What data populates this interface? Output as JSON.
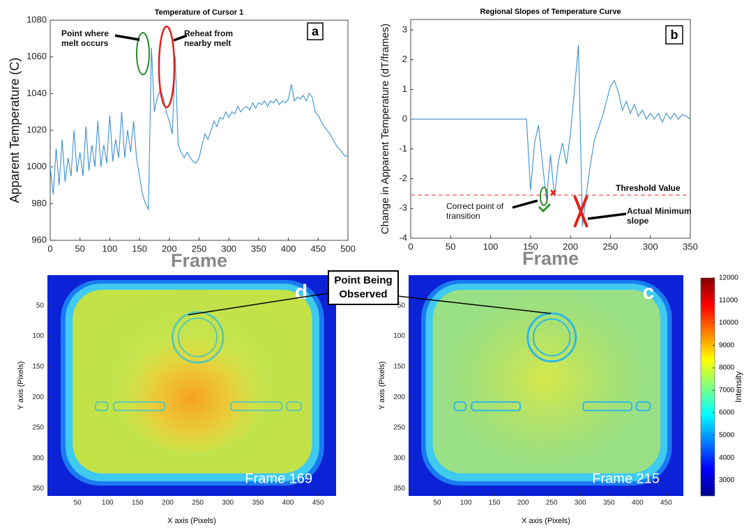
{
  "chart_data": [
    {
      "type": "line",
      "title": "Temperature of Cursor 1",
      "xlabel": "Frame",
      "ylabel": "Apparent  Temperature  (C)",
      "panel_label": "a",
      "annotations": [
        "Point where melt occurs",
        "Reheat from nearby melt"
      ],
      "xlim": [
        0,
        500
      ],
      "ylim": [
        960,
        1080
      ],
      "xticks": [
        0,
        50,
        100,
        150,
        200,
        250,
        300,
        350,
        400,
        450,
        500
      ],
      "yticks": [
        960,
        980,
        1000,
        1020,
        1040,
        1060,
        1080
      ],
      "grid": false,
      "x": [
        0,
        5,
        10,
        15,
        20,
        25,
        30,
        35,
        40,
        45,
        50,
        55,
        60,
        65,
        70,
        75,
        80,
        85,
        90,
        95,
        100,
        105,
        110,
        115,
        120,
        125,
        130,
        135,
        140,
        145,
        150,
        155,
        160,
        165,
        170,
        175,
        180,
        185,
        190,
        195,
        200,
        205,
        210,
        215,
        220,
        225,
        230,
        235,
        240,
        245,
        250,
        255,
        260,
        265,
        270,
        275,
        280,
        285,
        290,
        295,
        300,
        305,
        310,
        315,
        320,
        325,
        330,
        335,
        340,
        345,
        350,
        355,
        360,
        365,
        370,
        375,
        380,
        385,
        390,
        395,
        400,
        405,
        410,
        415,
        420,
        425,
        430,
        435,
        440,
        445,
        450,
        455,
        460,
        465,
        470,
        475,
        480,
        485,
        490,
        495,
        500
      ],
      "series": [
        {
          "color": "#3a8fd0",
          "values": [
            1000,
            985,
            1010,
            990,
            1015,
            992,
            1005,
            995,
            1020,
            997,
            1008,
            995,
            1022,
            998,
            1012,
            1000,
            1025,
            1000,
            1012,
            1002,
            1028,
            1003,
            1015,
            1005,
            1030,
            1005,
            1020,
            1008,
            1025,
            1005,
            995,
            985,
            980,
            977,
            1065,
            1030,
            1038,
            1042,
            1038,
            1030,
            1025,
            1018,
            1060,
            1012,
            1008,
            1005,
            1008,
            1005,
            1003,
            1002,
            1005,
            1012,
            1018,
            1015,
            1020,
            1025,
            1022,
            1027,
            1026,
            1030,
            1027,
            1030,
            1029,
            1033,
            1030,
            1032,
            1033,
            1031,
            1035,
            1032,
            1035,
            1034,
            1036,
            1033,
            1036,
            1035,
            1037,
            1034,
            1036,
            1035,
            1037,
            1045,
            1036,
            1038,
            1037,
            1039,
            1036,
            1040,
            1038,
            1030,
            1028,
            1025,
            1022,
            1020,
            1018,
            1015,
            1012,
            1010,
            1008,
            1006,
            1006
          ]
        }
      ]
    },
    {
      "type": "line",
      "title": "Regional Slopes of Temperature Curve",
      "xlabel": "Frame",
      "ylabel": "Change in Apparent Temperature (dT/frames)",
      "panel_label": "b",
      "annotations": [
        "Correct point of transition",
        "Actual Minimum slope"
      ],
      "threshold": {
        "value": -2.55,
        "label": "Threshold Value",
        "color": "#e8433c"
      },
      "xlim": [
        0,
        350
      ],
      "ylim": [
        -4,
        3.35
      ],
      "xticks": [
        0,
        50,
        100,
        150,
        200,
        250,
        300,
        350
      ],
      "yticks": [
        -4,
        -3,
        -2,
        -1,
        0,
        1,
        2,
        3
      ],
      "grid": false,
      "x": [
        0,
        5,
        10,
        15,
        20,
        25,
        30,
        35,
        40,
        45,
        50,
        55,
        60,
        65,
        70,
        75,
        80,
        85,
        90,
        95,
        100,
        105,
        110,
        115,
        120,
        125,
        130,
        135,
        140,
        145,
        150,
        155,
        160,
        165,
        170,
        175,
        180,
        185,
        190,
        195,
        200,
        205,
        210,
        215,
        220,
        225,
        230,
        235,
        240,
        245,
        250,
        255,
        260,
        265,
        270,
        275,
        280,
        285,
        290,
        295,
        300,
        305,
        310,
        315,
        320,
        325,
        330,
        335,
        340,
        345,
        350
      ],
      "series": [
        {
          "color": "#3a8fd0",
          "values": [
            0,
            0,
            0,
            0,
            0,
            0,
            0,
            0,
            0,
            0,
            0,
            0,
            0,
            0,
            0,
            0,
            0,
            0,
            0,
            0,
            0,
            0,
            0,
            0,
            0,
            0,
            0,
            0,
            0,
            0,
            -2.4,
            -0.8,
            -0.2,
            -1.5,
            -2.7,
            -1.2,
            -2.6,
            -1.4,
            -0.8,
            -1.5,
            -0.5,
            1.0,
            2.5,
            -3.6,
            -2.5,
            -1.5,
            -0.7,
            -0.3,
            0.1,
            0.6,
            1.1,
            1.3,
            0.9,
            0.3,
            0.6,
            0.2,
            0.5,
            0.1,
            0.3,
            0.0,
            0.2,
            0.0,
            0.2,
            -0.1,
            0.2,
            0.0,
            0.2,
            0.0,
            0.15,
            0.1,
            0.0
          ]
        }
      ]
    },
    {
      "type": "heatmap",
      "xlabel": "X axis (Pixels)",
      "ylabel": "Y axis (Pixels)",
      "panel_label": "d",
      "label": "Frame 169",
      "hot": true,
      "xlim": [
        0,
        480
      ],
      "ylim": [
        0,
        362
      ],
      "y_inverted": true,
      "xticks": [
        50,
        100,
        150,
        200,
        250,
        300,
        350,
        400,
        450
      ],
      "yticks": [
        50,
        100,
        150,
        200,
        250,
        300,
        350
      ]
    },
    {
      "type": "heatmap",
      "xlabel": "X axis (Pixels)",
      "ylabel": "Y axis (Pixels)",
      "panel_label": "c",
      "label": "Frame 215",
      "hot": false,
      "xlim": [
        0,
        480
      ],
      "ylim": [
        0,
        362
      ],
      "y_inverted": true,
      "xticks": [
        50,
        100,
        150,
        200,
        250,
        300,
        350,
        400,
        450
      ],
      "yticks": [
        50,
        100,
        150,
        200,
        250,
        300,
        350
      ],
      "colorbar": {
        "label": "Intensity",
        "clim": [
          2300,
          12000
        ],
        "ticks": [
          3000,
          4000,
          5000,
          6000,
          7000,
          8000,
          9000,
          10000,
          11000,
          12000
        ]
      }
    }
  ],
  "callout": "Point Being Observed"
}
